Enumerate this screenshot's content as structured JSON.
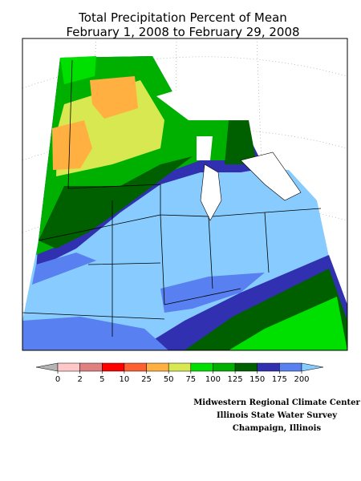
{
  "title": [
    "Total Precipitation Percent of Mean",
    "February 1, 2008 to February 29, 2008"
  ],
  "legend": {
    "ticks": [
      0,
      2,
      5,
      10,
      25,
      50,
      75,
      100,
      125,
      150,
      175,
      200
    ],
    "colors": [
      "#b4b4b4",
      "#ffc8c8",
      "#e08080",
      "#ff0000",
      "#ff6030",
      "#ffb040",
      "#d8e850",
      "#00e000",
      "#00b000",
      "#006000",
      "#3030b0",
      "#5880f0",
      "#88ccff"
    ]
  },
  "credits": [
    "Midwestern Regional Climate Center",
    "Illinois State Water Survey",
    "Champaign, Illinois"
  ]
}
